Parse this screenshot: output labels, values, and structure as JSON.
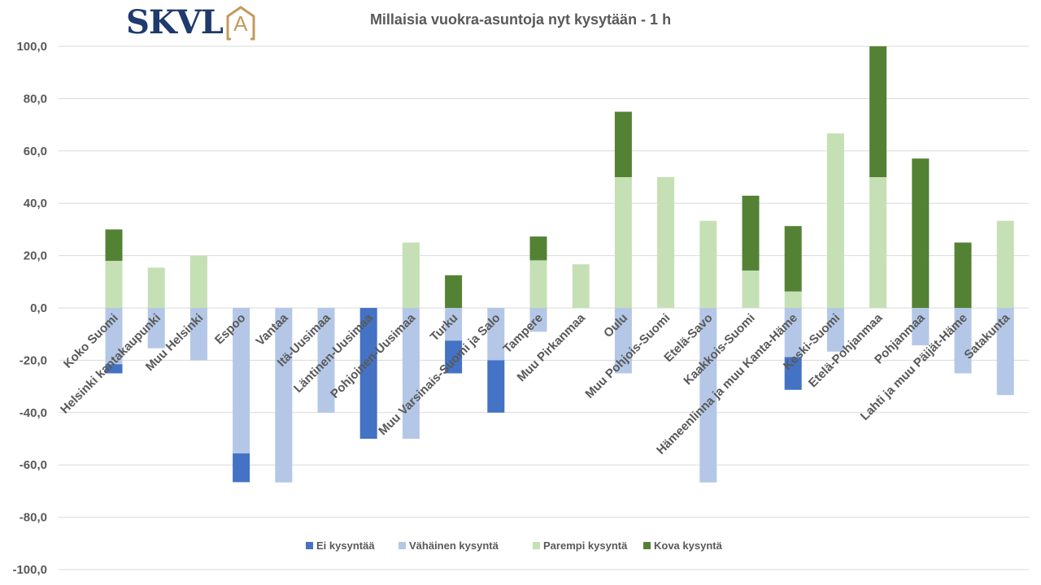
{
  "logo": {
    "text": "SKVL",
    "mark": "A"
  },
  "colors": {
    "ei": "#4472c4",
    "vahainen": "#b4c7e7",
    "parempi": "#c5e0b4",
    "kova": "#548235",
    "grid": "#d9d9d9",
    "text": "#595959"
  },
  "chart_data": {
    "type": "bar",
    "stacked": true,
    "title": "Millaisia  vuokra-asuntoja nyt kysytään - 1 h",
    "xlabel": "",
    "ylabel": "",
    "ylim": [
      -100,
      100
    ],
    "yticks": [
      "100,0",
      "80,0",
      "60,0",
      "40,0",
      "20,0",
      "0,0",
      "-20,0",
      "-40,0",
      "-60,0",
      "-80,0",
      "-100,0"
    ],
    "grid": true,
    "legend_position": "bottom",
    "categories": [
      "Koko Suomi",
      "Helsinki kantakaupunki",
      "Muu Helsinki",
      "Espoo",
      "Vantaa",
      "Itä-Uusimaa",
      "Läntinen-Uusimaa",
      "Pohjoinen-Uusimaa",
      "Turku",
      "Muu Varsinais-Suomi ja Salo",
      "Tampere",
      "Muu Pirkanmaa",
      "Oulu",
      "Muu Pohjois-Suomi",
      "Etelä-Savo",
      "Kaakkois-Suomi",
      "Hämeenlinna ja muu Kanta-Häme",
      "Keski-Suomi",
      "Etelä-Pohjanmaa",
      "Pohjanmaa",
      "Lahti ja muu Päijät-Häme",
      "Satakunta"
    ],
    "series": [
      {
        "name": "Ei kysyntää",
        "key": "ei",
        "values": [
          -3.5,
          0,
          0,
          -11,
          0,
          0,
          -50,
          0,
          -12.5,
          -20,
          0,
          0,
          0,
          0,
          0,
          0,
          -12.5,
          0,
          0,
          0,
          0,
          0
        ]
      },
      {
        "name": "Vähäinen kysyntä",
        "key": "vahainen",
        "values": [
          -21.5,
          -15.4,
          -20,
          -55.6,
          -66.7,
          -40,
          0,
          -50,
          -12.5,
          -20,
          -9.1,
          0,
          -25,
          0,
          -66.7,
          0,
          -18.8,
          -16.7,
          0,
          -14.3,
          -25,
          -33.3
        ]
      },
      {
        "name": "Parempi kysyntä",
        "key": "parempi",
        "values": [
          18,
          15.4,
          20,
          0,
          0,
          0,
          0,
          25,
          0,
          0,
          18.2,
          16.7,
          50,
          50,
          33.3,
          14.3,
          6.3,
          66.7,
          50,
          0,
          0,
          33.3
        ]
      },
      {
        "name": "Kova kysyntä",
        "key": "kova",
        "values": [
          12,
          0,
          0,
          0,
          0,
          0,
          0,
          0,
          12.5,
          0,
          9.1,
          0,
          25,
          0,
          0,
          28.6,
          25,
          0,
          50,
          57.1,
          25,
          0
        ]
      }
    ]
  }
}
